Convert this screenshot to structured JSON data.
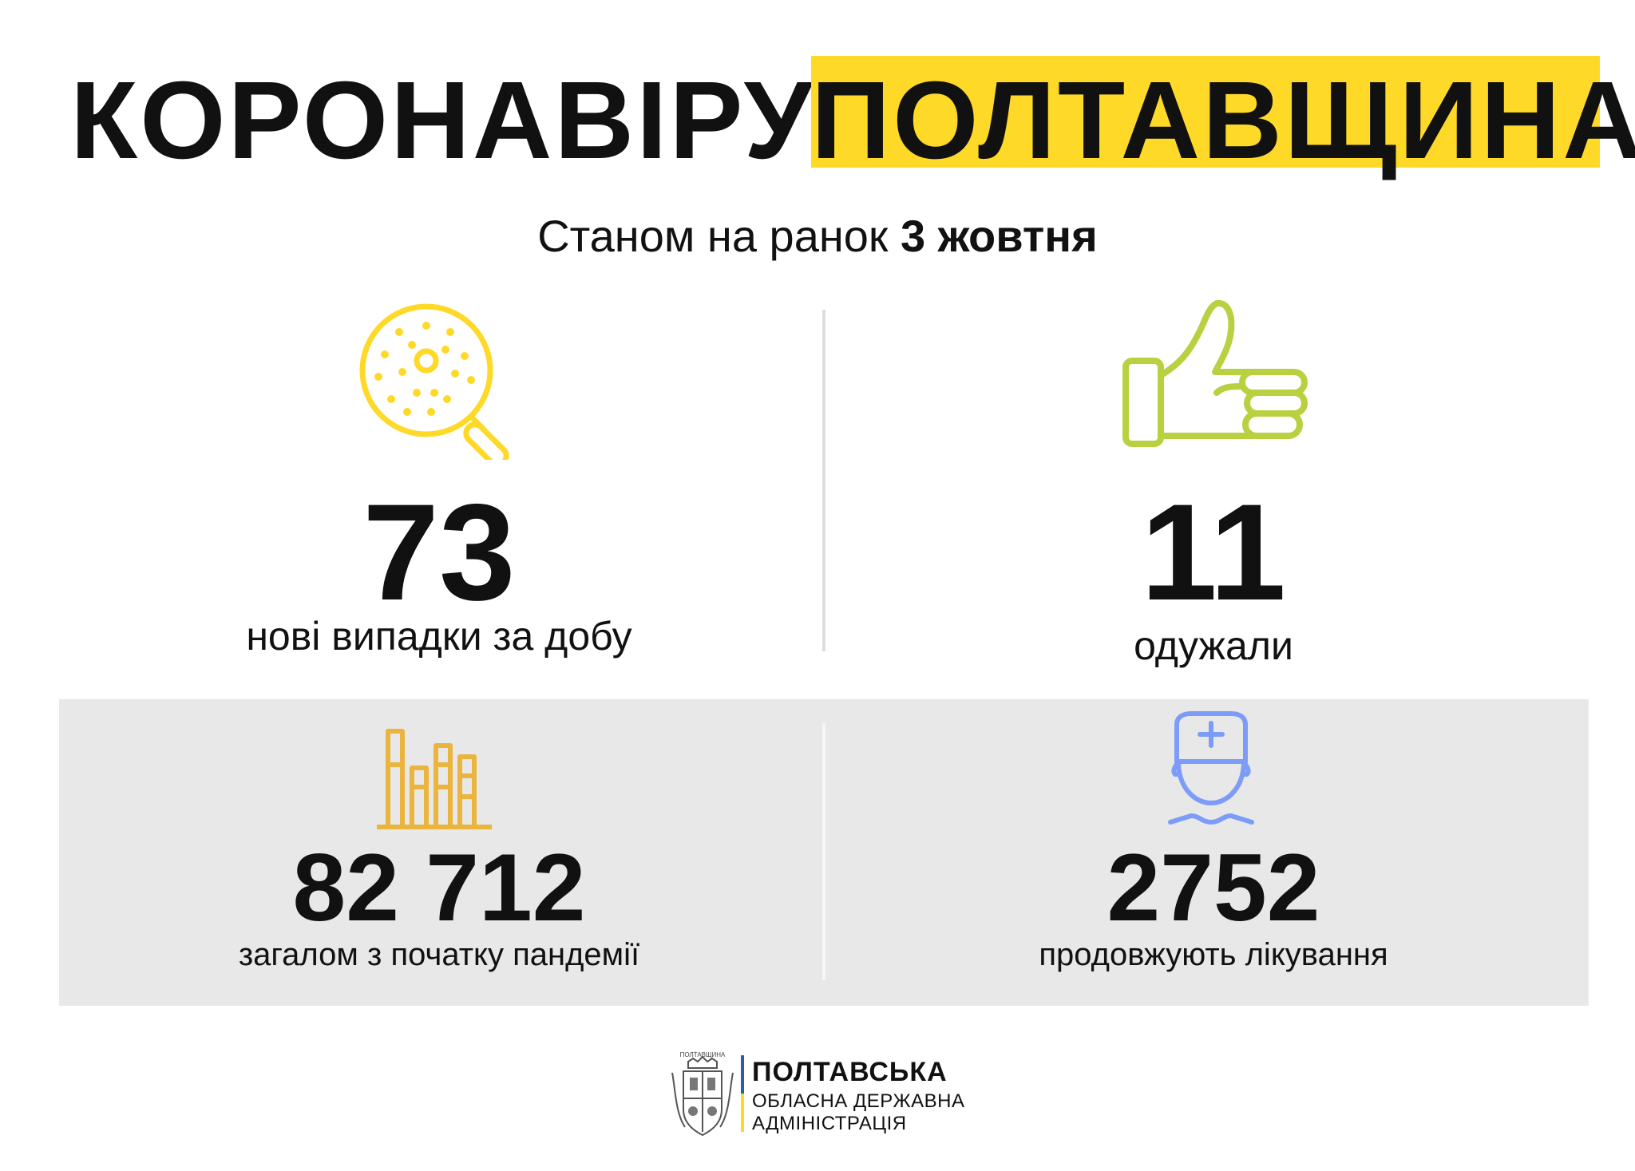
{
  "header": {
    "title_left": "КОРОНАВІРУС.",
    "title_right": "ПОЛТАВЩИНА",
    "accent_color": "#FFD928"
  },
  "subtitle": {
    "prefix": "Станом на ранок ",
    "date": "3 жовтня"
  },
  "stats": {
    "new_cases": {
      "value": "73",
      "label": "нові випадки за добу",
      "icon": "magnifier-virus-icon",
      "color": "#FFD928"
    },
    "recovered": {
      "value": "11",
      "label": "одужали",
      "icon": "thumbs-up-icon",
      "color": "#B8D140"
    },
    "total": {
      "value": "82 712",
      "label": "загалом з початку пандемії",
      "icon": "bar-chart-icon",
      "color": "#EBB43C"
    },
    "treatment": {
      "value": "2752",
      "label": "продовжують лікування",
      "icon": "doctor-icon",
      "color": "#7D9CF7"
    }
  },
  "footer": {
    "org_line1": "ПОЛТАВСЬКА",
    "org_line2": "ОБЛАСНА ДЕРЖАВНА",
    "org_line3": "АДМІНІСТРАЦІЯ",
    "emblem_text": "ПОЛТАВЩИНА",
    "emblem_icon": "coat-of-arms-icon"
  }
}
